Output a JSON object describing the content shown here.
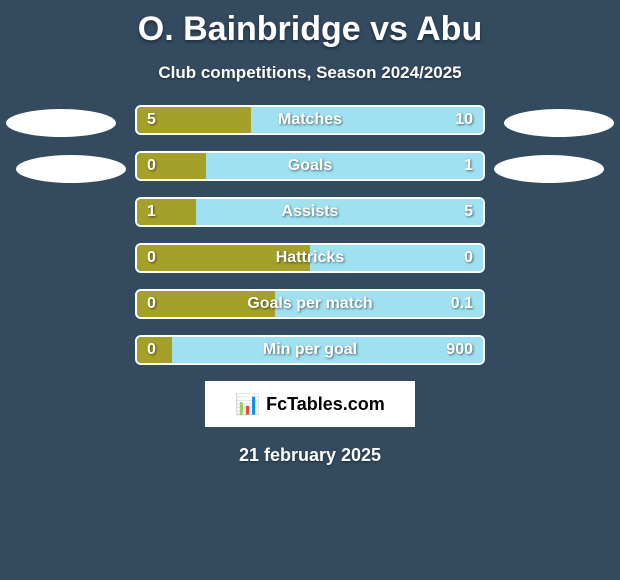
{
  "colors": {
    "background": "#334a5f",
    "text": "#ffffff",
    "left_bar": "#a4a02a",
    "right_bar": "#9fe1f0",
    "bar_border": "#ffffff",
    "logo_bg": "#ffffff",
    "logo_text": "#000000"
  },
  "title": "O. Bainbridge vs Abu",
  "subtitle": "Club competitions, Season 2024/2025",
  "title_fontsize": 34,
  "subtitle_fontsize": 17,
  "label_fontsize": 16,
  "date": "21 february 2025",
  "logo": {
    "icon": "📊",
    "text": "FcTables.com"
  },
  "bars": [
    {
      "label": "Matches",
      "left": "5",
      "right": "10",
      "left_pct": 33,
      "right_pct": 67
    },
    {
      "label": "Goals",
      "left": "0",
      "right": "1",
      "left_pct": 20,
      "right_pct": 80
    },
    {
      "label": "Assists",
      "left": "1",
      "right": "5",
      "left_pct": 17,
      "right_pct": 83
    },
    {
      "label": "Hattricks",
      "left": "0",
      "right": "0",
      "left_pct": 50,
      "right_pct": 50
    },
    {
      "label": "Goals per match",
      "left": "0",
      "right": "0.1",
      "left_pct": 40,
      "right_pct": 60
    },
    {
      "label": "Min per goal",
      "left": "0",
      "right": "900",
      "left_pct": 10,
      "right_pct": 90
    }
  ]
}
